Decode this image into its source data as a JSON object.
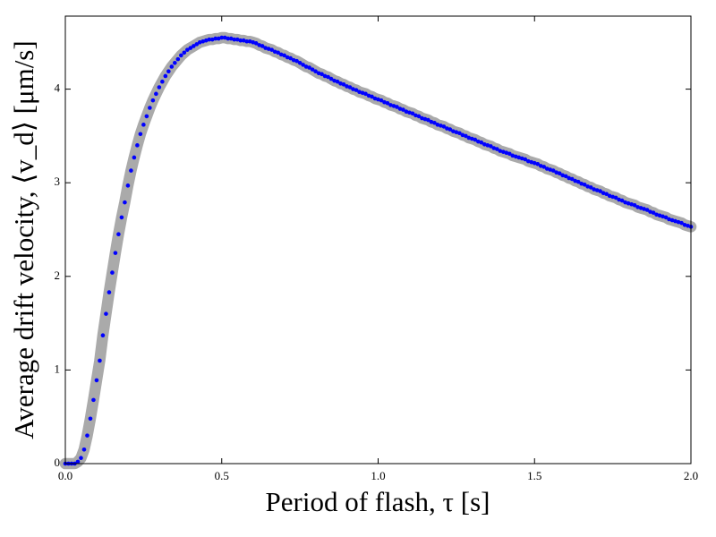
{
  "chart_data": {
    "type": "scatter",
    "x_label": "Period of flash, τ [s]",
    "y_label": "Average drift velocity, ⟨v_d⟩ [μm/s]",
    "color": "#0000ff",
    "band_color": "#aaaaaa",
    "band_halfwidth": 0.06,
    "xlim": [
      0,
      2
    ],
    "ylim": [
      0,
      4.78
    ],
    "xticks": [
      {
        "value": 0,
        "label": "0.0"
      },
      {
        "value": 0.5,
        "label": "0.5"
      },
      {
        "value": 1,
        "label": "1.0"
      },
      {
        "value": 1.5,
        "label": "1.5"
      },
      {
        "value": 2,
        "label": "2.0"
      }
    ],
    "yticks": [
      0,
      1,
      2,
      3,
      4
    ],
    "x": [
      0,
      0.01,
      0.02,
      0.03,
      0.04,
      0.05,
      0.06,
      0.07,
      0.08,
      0.09,
      0.1,
      0.11,
      0.12,
      0.13,
      0.14,
      0.15,
      0.16,
      0.17,
      0.18,
      0.19,
      0.2,
      0.21,
      0.22,
      0.23,
      0.24,
      0.25,
      0.26,
      0.27,
      0.28,
      0.29,
      0.3,
      0.31,
      0.32,
      0.33,
      0.34,
      0.35,
      0.36,
      0.37,
      0.38,
      0.39,
      0.4,
      0.41,
      0.42,
      0.43,
      0.44,
      0.45,
      0.46,
      0.47,
      0.48,
      0.49,
      0.5,
      0.51,
      0.52,
      0.53,
      0.54,
      0.55,
      0.56,
      0.57,
      0.58,
      0.59,
      0.6,
      0.61,
      0.62,
      0.63,
      0.64,
      0.65,
      0.66,
      0.67,
      0.68,
      0.69,
      0.7,
      0.71,
      0.72,
      0.73,
      0.74,
      0.75,
      0.76,
      0.77,
      0.78,
      0.79,
      0.8,
      0.81,
      0.82,
      0.83,
      0.84,
      0.85,
      0.86,
      0.87,
      0.88,
      0.89,
      0.9,
      0.91,
      0.92,
      0.93,
      0.94,
      0.95,
      0.96,
      0.97,
      0.98,
      0.99,
      1,
      1.01,
      1.02,
      1.03,
      1.04,
      1.05,
      1.06,
      1.07,
      1.08,
      1.09,
      1.1,
      1.11,
      1.12,
      1.13,
      1.14,
      1.15,
      1.16,
      1.17,
      1.18,
      1.19,
      1.2,
      1.21,
      1.22,
      1.23,
      1.24,
      1.25,
      1.26,
      1.27,
      1.28,
      1.29,
      1.3,
      1.31,
      1.32,
      1.33,
      1.34,
      1.35,
      1.36,
      1.37,
      1.38,
      1.39,
      1.4,
      1.41,
      1.42,
      1.43,
      1.44,
      1.45,
      1.46,
      1.47,
      1.48,
      1.49,
      1.5,
      1.51,
      1.52,
      1.53,
      1.54,
      1.55,
      1.56,
      1.57,
      1.58,
      1.59,
      1.6,
      1.61,
      1.62,
      1.63,
      1.64,
      1.65,
      1.66,
      1.67,
      1.68,
      1.69,
      1.7,
      1.71,
      1.72,
      1.73,
      1.74,
      1.75,
      1.76,
      1.77,
      1.78,
      1.79,
      1.8,
      1.81,
      1.82,
      1.83,
      1.84,
      1.85,
      1.86,
      1.87,
      1.88,
      1.89,
      1.9,
      1.91,
      1.92,
      1.93,
      1.94,
      1.95,
      1.96,
      1.97,
      1.98,
      1.99,
      2
    ],
    "values": [
      0,
      0,
      0,
      0,
      0.02,
      0.06,
      0.15,
      0.3,
      0.48,
      0.68,
      0.89,
      1.1,
      1.37,
      1.6,
      1.83,
      2.04,
      2.25,
      2.45,
      2.63,
      2.79,
      2.97,
      3.13,
      3.27,
      3.4,
      3.52,
      3.62,
      3.71,
      3.8,
      3.88,
      3.95,
      4.02,
      4.08,
      4.14,
      4.19,
      4.24,
      4.28,
      4.32,
      4.36,
      4.39,
      4.42,
      4.44,
      4.46,
      4.48,
      4.5,
      4.51,
      4.52,
      4.53,
      4.53,
      4.54,
      4.54,
      4.55,
      4.55,
      4.54,
      4.54,
      4.53,
      4.53,
      4.52,
      4.52,
      4.51,
      4.51,
      4.5,
      4.49,
      4.47,
      4.46,
      4.44,
      4.43,
      4.42,
      4.4,
      4.39,
      4.37,
      4.36,
      4.34,
      4.33,
      4.31,
      4.3,
      4.28,
      4.26,
      4.24,
      4.23,
      4.21,
      4.19,
      4.17,
      4.16,
      4.14,
      4.13,
      4.11,
      4.09,
      4.08,
      4.06,
      4.05,
      4.03,
      4.02,
      4,
      3.99,
      3.97,
      3.96,
      3.95,
      3.93,
      3.92,
      3.9,
      3.89,
      3.88,
      3.86,
      3.85,
      3.83,
      3.82,
      3.81,
      3.79,
      3.78,
      3.76,
      3.75,
      3.74,
      3.72,
      3.71,
      3.69,
      3.68,
      3.67,
      3.65,
      3.64,
      3.62,
      3.61,
      3.6,
      3.58,
      3.57,
      3.55,
      3.54,
      3.53,
      3.51,
      3.5,
      3.48,
      3.47,
      3.46,
      3.44,
      3.43,
      3.41,
      3.4,
      3.39,
      3.37,
      3.36,
      3.34,
      3.33,
      3.32,
      3.31,
      3.29,
      3.28,
      3.27,
      3.26,
      3.25,
      3.23,
      3.22,
      3.21,
      3.2,
      3.18,
      3.17,
      3.15,
      3.14,
      3.13,
      3.11,
      3.1,
      3.08,
      3.07,
      3.05,
      3.04,
      3.02,
      3.01,
      2.99,
      2.98,
      2.96,
      2.95,
      2.93,
      2.92,
      2.91,
      2.89,
      2.88,
      2.86,
      2.85,
      2.84,
      2.82,
      2.81,
      2.79,
      2.78,
      2.77,
      2.76,
      2.74,
      2.73,
      2.72,
      2.71,
      2.69,
      2.68,
      2.66,
      2.65,
      2.64,
      2.63,
      2.61,
      2.6,
      2.59,
      2.58,
      2.57,
      2.55,
      2.54,
      2.53
    ]
  }
}
